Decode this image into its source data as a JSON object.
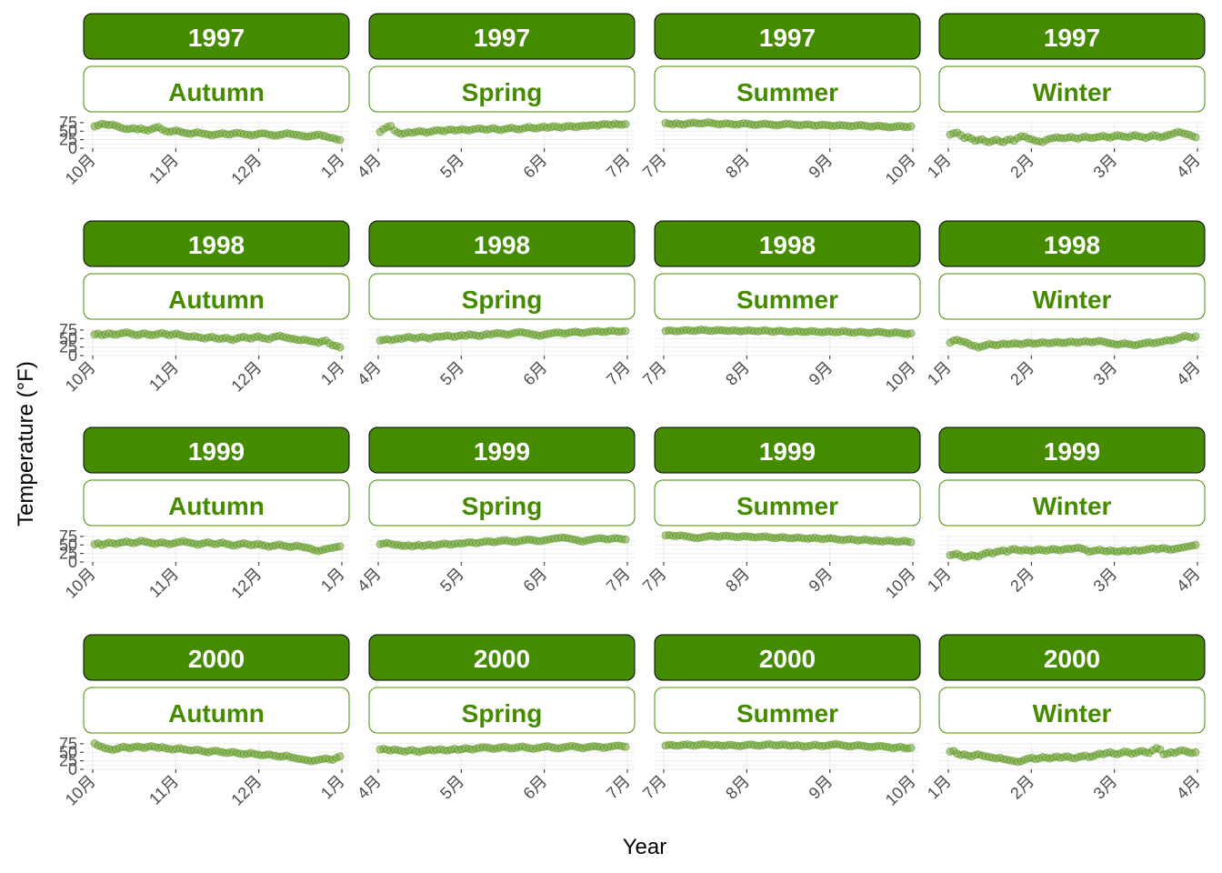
{
  "chart_data": {
    "type": "scatter",
    "xlabel": "Year",
    "ylabel": "Temperature (°F)",
    "y_ticks": [
      "0",
      "25",
      "50",
      "75"
    ],
    "ylim": [
      0,
      80
    ],
    "colors": {
      "strip_fill": "#458B00",
      "strip_border": "#000000",
      "season_text": "#458B00",
      "point": "#6AA12E"
    },
    "seasons": [
      {
        "name": "Autumn",
        "x_ticks": [
          "10月",
          "11月",
          "12月",
          "1月"
        ]
      },
      {
        "name": "Spring",
        "x_ticks": [
          "4月",
          "5月",
          "6月",
          "7月"
        ]
      },
      {
        "name": "Summer",
        "x_ticks": [
          "7月",
          "8月",
          "9月",
          "10月"
        ]
      },
      {
        "name": "Winter",
        "x_ticks": [
          "1月",
          "2月",
          "3月",
          "4月"
        ]
      }
    ],
    "panels": [
      {
        "year": "1997",
        "season": "Autumn",
        "values": [
          64,
          67,
          72,
          70,
          68,
          69,
          66,
          62,
          58,
          56,
          57,
          59,
          55,
          58,
          54,
          52,
          56,
          60,
          62,
          55,
          50,
          48,
          50,
          52,
          49,
          46,
          44,
          42,
          45,
          47,
          44,
          42,
          40,
          38,
          40,
          42,
          44,
          41,
          40,
          43,
          45,
          44,
          41,
          40,
          38,
          39,
          42,
          44,
          43,
          40,
          38,
          37,
          39,
          41,
          44,
          42,
          40,
          39,
          37,
          35,
          34,
          36,
          38,
          40,
          37,
          35,
          31,
          30,
          26,
          24
        ]
      },
      {
        "year": "1997",
        "season": "Spring",
        "values": [
          48,
          56,
          62,
          65,
          52,
          46,
          42,
          44,
          47,
          45,
          48,
          50,
          49,
          46,
          48,
          51,
          53,
          52,
          50,
          54,
          55,
          52,
          53,
          56,
          54,
          52,
          55,
          57,
          58,
          56,
          54,
          57,
          59,
          55,
          53,
          56,
          58,
          60,
          57,
          55,
          57,
          60,
          62,
          59,
          58,
          61,
          63,
          60,
          62,
          64,
          62,
          60,
          63,
          65,
          64,
          62,
          64,
          66,
          65,
          67,
          68,
          66,
          69,
          71,
          70,
          68,
          72,
          70,
          69,
          71
        ]
      },
      {
        "year": "1997",
        "season": "Summer",
        "values": [
          74,
          72,
          70,
          73,
          71,
          69,
          72,
          74,
          75,
          73,
          72,
          74,
          76,
          74,
          72,
          70,
          71,
          73,
          72,
          70,
          69,
          71,
          73,
          72,
          70,
          68,
          69,
          71,
          72,
          70,
          69,
          67,
          68,
          70,
          72,
          71,
          69,
          68,
          67,
          69,
          70,
          68,
          66,
          67,
          69,
          68,
          67,
          65,
          66,
          68,
          67,
          66,
          64,
          65,
          67,
          68,
          66,
          64,
          63,
          65,
          66,
          64,
          63,
          61,
          62,
          64,
          65,
          63,
          62,
          64
        ]
      },
      {
        "year": "1997",
        "season": "Winter",
        "values": [
          40,
          44,
          46,
          38,
          30,
          33,
          28,
          22,
          24,
          26,
          20,
          18,
          22,
          25,
          20,
          18,
          24,
          26,
          22,
          30,
          35,
          34,
          28,
          26,
          22,
          20,
          18,
          24,
          28,
          30,
          32,
          30,
          29,
          31,
          33,
          30,
          28,
          32,
          34,
          31,
          30,
          32,
          34,
          36,
          33,
          31,
          35,
          38,
          36,
          34,
          32,
          36,
          38,
          35,
          33,
          30,
          34,
          38,
          36,
          32,
          34,
          38,
          40,
          44,
          48,
          46,
          42,
          40,
          36,
          32
        ]
      },
      {
        "year": "1998",
        "season": "Autumn",
        "values": [
          62,
          64,
          60,
          62,
          65,
          63,
          61,
          64,
          66,
          68,
          65,
          62,
          60,
          63,
          65,
          62,
          60,
          61,
          64,
          66,
          63,
          60,
          62,
          64,
          61,
          58,
          56,
          55,
          57,
          54,
          52,
          50,
          53,
          55,
          51,
          49,
          50,
          52,
          48,
          46,
          50,
          53,
          55,
          51,
          50,
          54,
          56,
          52,
          50,
          48,
          53,
          56,
          58,
          55,
          52,
          50,
          49,
          46,
          45,
          47,
          44,
          42,
          40,
          38,
          42,
          44,
          36,
          30,
          28,
          24
        ]
      },
      {
        "year": "1998",
        "season": "Spring",
        "values": [
          44,
          46,
          48,
          45,
          47,
          50,
          49,
          52,
          55,
          52,
          50,
          53,
          55,
          52,
          50,
          54,
          56,
          55,
          57,
          59,
          56,
          55,
          58,
          60,
          58,
          62,
          61,
          59,
          57,
          60,
          63,
          62,
          64,
          66,
          65,
          63,
          61,
          64,
          67,
          69,
          68,
          66,
          64,
          62,
          60,
          58,
          61,
          63,
          65,
          67,
          68,
          66,
          64,
          67,
          69,
          70,
          68,
          66,
          68,
          70,
          71,
          72,
          70,
          69,
          71,
          73,
          72,
          70,
          71,
          72
        ]
      },
      {
        "year": "1998",
        "season": "Summer",
        "values": [
          72,
          74,
          73,
          71,
          72,
          74,
          75,
          73,
          72,
          74,
          76,
          75,
          73,
          72,
          74,
          75,
          74,
          73,
          72,
          74,
          73,
          71,
          72,
          74,
          73,
          72,
          71,
          73,
          74,
          72,
          70,
          71,
          73,
          72,
          70,
          69,
          71,
          72,
          70,
          69,
          70,
          72,
          71,
          69,
          68,
          70,
          71,
          69,
          68,
          70,
          72,
          70,
          68,
          67,
          69,
          70,
          68,
          66,
          67,
          69,
          70,
          68,
          66,
          65,
          67,
          68,
          66,
          64,
          63,
          65
        ]
      },
      {
        "year": "1998",
        "season": "Winter",
        "values": [
          38,
          44,
          46,
          42,
          40,
          36,
          30,
          28,
          24,
          27,
          30,
          34,
          32,
          30,
          33,
          35,
          33,
          34,
          36,
          35,
          33,
          36,
          38,
          36,
          35,
          37,
          39,
          37,
          36,
          38,
          40,
          38,
          37,
          39,
          41,
          39,
          38,
          40,
          42,
          40,
          39,
          41,
          43,
          41,
          38,
          36,
          34,
          32,
          34,
          36,
          34,
          32,
          30,
          33,
          35,
          37,
          39,
          36,
          38,
          40,
          42,
          45,
          44,
          46,
          50,
          54,
          58,
          55,
          52,
          56
        ]
      },
      {
        "year": "1999",
        "season": "Autumn",
        "values": [
          52,
          55,
          50,
          53,
          57,
          55,
          53,
          56,
          58,
          60,
          57,
          55,
          58,
          62,
          60,
          58,
          55,
          53,
          56,
          58,
          55,
          52,
          54,
          57,
          59,
          61,
          58,
          56,
          54,
          51,
          53,
          56,
          58,
          54,
          52,
          55,
          57,
          53,
          51,
          48,
          50,
          53,
          55,
          52,
          49,
          51,
          53,
          50,
          48,
          45,
          47,
          49,
          51,
          48,
          46,
          44,
          46,
          48,
          45,
          43,
          41,
          38,
          34,
          32,
          35,
          38,
          40,
          42,
          44,
          46
        ]
      },
      {
        "year": "1999",
        "season": "Spring",
        "values": [
          52,
          54,
          56,
          53,
          51,
          50,
          48,
          47,
          49,
          46,
          48,
          50,
          47,
          49,
          51,
          48,
          50,
          52,
          54,
          52,
          51,
          53,
          55,
          54,
          56,
          58,
          57,
          55,
          57,
          59,
          61,
          60,
          58,
          60,
          62,
          64,
          62,
          60,
          59,
          61,
          63,
          65,
          66,
          64,
          62,
          61,
          63,
          65,
          67,
          69,
          70,
          72,
          71,
          69,
          67,
          65,
          62,
          60,
          63,
          65,
          67,
          69,
          70,
          68,
          66,
          68,
          70,
          69,
          67,
          66
        ]
      },
      {
        "year": "1999",
        "season": "Summer",
        "values": [
          78,
          79,
          77,
          76,
          78,
          77,
          75,
          73,
          71,
          70,
          72,
          74,
          76,
          77,
          75,
          74,
          76,
          77,
          76,
          75,
          73,
          74,
          76,
          75,
          74,
          72,
          73,
          74,
          75,
          73,
          71,
          70,
          72,
          73,
          71,
          69,
          70,
          72,
          71,
          69,
          68,
          70,
          71,
          69,
          67,
          68,
          70,
          69,
          67,
          65,
          64,
          66,
          67,
          65,
          63,
          64,
          66,
          64,
          62,
          63,
          61,
          60,
          62,
          63,
          61,
          59,
          60,
          62,
          60,
          58
        ]
      },
      {
        "year": "1999",
        "season": "Winter",
        "values": [
          20,
          22,
          24,
          18,
          14,
          16,
          20,
          18,
          16,
          22,
          26,
          28,
          25,
          30,
          32,
          34,
          30,
          36,
          38,
          35,
          33,
          36,
          34,
          32,
          35,
          37,
          35,
          33,
          36,
          38,
          36,
          34,
          37,
          39,
          38,
          40,
          42,
          39,
          36,
          30,
          32,
          34,
          36,
          33,
          31,
          34,
          32,
          30,
          32,
          34,
          31,
          33,
          35,
          32,
          34,
          36,
          38,
          40,
          37,
          39,
          41,
          38,
          36,
          38,
          40,
          42,
          44,
          46,
          48,
          50
        ]
      },
      {
        "year": "2000",
        "season": "Autumn",
        "values": [
          76,
          70,
          66,
          62,
          60,
          57,
          59,
          63,
          66,
          64,
          62,
          65,
          67,
          65,
          63,
          66,
          68,
          65,
          63,
          65,
          62,
          60,
          58,
          60,
          62,
          59,
          57,
          55,
          56,
          58,
          54,
          52,
          50,
          53,
          55,
          52,
          50,
          48,
          49,
          51,
          48,
          46,
          44,
          46,
          48,
          45,
          43,
          41,
          42,
          44,
          41,
          39,
          37,
          38,
          40,
          36,
          34,
          31,
          30,
          28,
          26,
          24,
          26,
          28,
          30,
          32,
          29,
          28,
          34,
          38
        ]
      },
      {
        "year": "2000",
        "season": "Spring",
        "values": [
          58,
          60,
          57,
          55,
          58,
          56,
          54,
          52,
          55,
          57,
          53,
          51,
          54,
          56,
          58,
          55,
          57,
          59,
          56,
          55,
          58,
          60,
          57,
          59,
          62,
          60,
          58,
          61,
          63,
          65,
          64,
          62,
          60,
          62,
          64,
          66,
          63,
          61,
          63,
          65,
          67,
          64,
          62,
          60,
          62,
          64,
          66,
          68,
          65,
          63,
          61,
          63,
          65,
          67,
          69,
          66,
          64,
          62,
          64,
          66,
          68,
          67,
          65,
          63,
          65,
          67,
          69,
          70,
          68,
          66
        ]
      },
      {
        "year": "2000",
        "season": "Summer",
        "values": [
          70,
          72,
          71,
          69,
          70,
          72,
          73,
          71,
          69,
          71,
          73,
          74,
          72,
          70,
          72,
          71,
          69,
          70,
          72,
          71,
          69,
          68,
          70,
          72,
          73,
          71,
          69,
          70,
          72,
          74,
          72,
          70,
          71,
          73,
          71,
          69,
          70,
          71,
          69,
          67,
          68,
          70,
          72,
          70,
          68,
          69,
          71,
          73,
          74,
          72,
          70,
          68,
          67,
          69,
          71,
          70,
          68,
          66,
          65,
          67,
          69,
          68,
          66,
          64,
          62,
          64,
          66,
          63,
          61,
          63
        ]
      },
      {
        "year": "2000",
        "season": "Winter",
        "values": [
          52,
          54,
          46,
          42,
          44,
          40,
          38,
          42,
          44,
          40,
          38,
          36,
          34,
          32,
          34,
          30,
          28,
          26,
          24,
          22,
          24,
          28,
          32,
          34,
          30,
          32,
          36,
          34,
          32,
          35,
          37,
          34,
          36,
          38,
          34,
          32,
          36,
          38,
          40,
          36,
          38,
          42,
          46,
          44,
          48,
          50,
          46,
          44,
          48,
          52,
          50,
          46,
          48,
          52,
          54,
          50,
          48,
          56,
          62,
          58,
          44,
          46,
          50,
          48,
          52,
          56,
          54,
          50,
          48,
          50
        ]
      }
    ]
  }
}
